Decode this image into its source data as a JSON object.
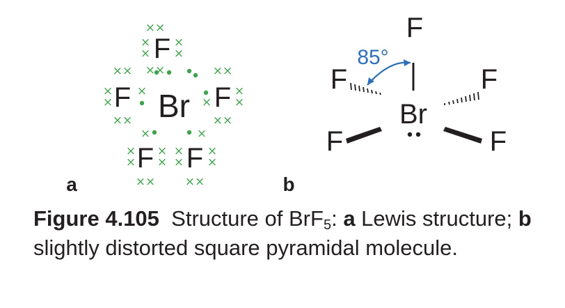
{
  "colors": {
    "ink": "#231f20",
    "electrons": "#3fa34d",
    "angle": "#2f6fb5"
  },
  "lewis": {
    "center": "Br",
    "top": "F",
    "left": "F",
    "right": "F",
    "bottom_left": "F",
    "bottom_right": "F",
    "panel_label": "a"
  },
  "geometry": {
    "center": "Br",
    "axial": "F",
    "back_left": "F",
    "back_right": "F",
    "front_left": "F",
    "front_right": "F",
    "angle_label": "85°",
    "panel_label": "b"
  },
  "caption": {
    "figure": "Figure 4.105",
    "text1": "Structure of BrF",
    "subscript": "5",
    "text2": ": ",
    "part_a": "a",
    "text3": " Lewis structure; ",
    "part_b": "b",
    "text4": " slightly distorted square pyramidal molecule."
  }
}
